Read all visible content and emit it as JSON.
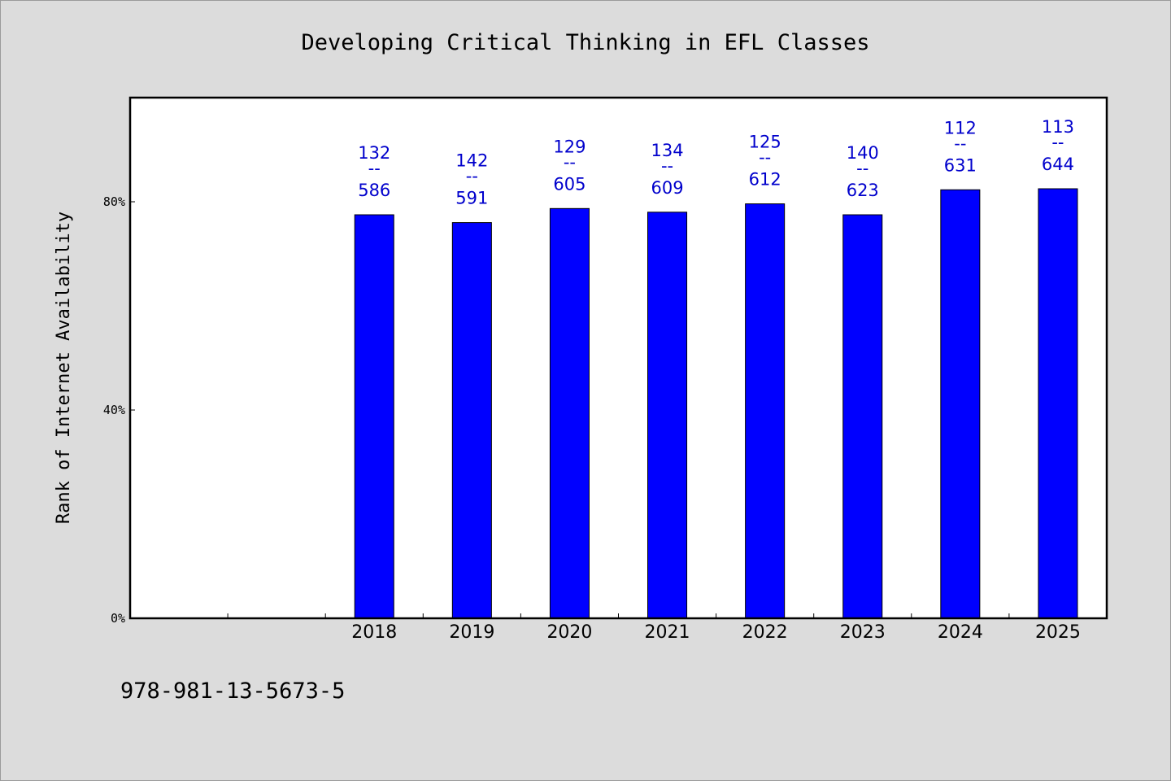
{
  "footer": {
    "isbn": "978-981-13-5673-5"
  },
  "colors": {
    "background": "#dcdcdc",
    "plot": "#ffffff",
    "bar": "#0000ff",
    "label": "#0000cc",
    "axis": "#000000"
  },
  "chart_data": {
    "type": "bar",
    "title": "Developing Critical Thinking in EFL Classes",
    "xlabel": "",
    "ylabel": "Rank of Internet Availability",
    "categories": [
      "",
      "",
      "2018",
      "2019",
      "2020",
      "2021",
      "2022",
      "2023",
      "2024",
      "2025"
    ],
    "series": [
      {
        "values": [
          null,
          null,
          77.5,
          76.0,
          78.7,
          78.0,
          79.6,
          77.5,
          82.3,
          82.5
        ]
      }
    ],
    "data_labels": [
      null,
      null,
      [
        "132",
        "--",
        "586"
      ],
      [
        "142",
        "--",
        "591"
      ],
      [
        "129",
        "--",
        "605"
      ],
      [
        "134",
        "--",
        "609"
      ],
      [
        "125",
        "--",
        "612"
      ],
      [
        "140",
        "--",
        "623"
      ],
      [
        "112",
        "--",
        "631"
      ],
      [
        "113",
        "--",
        "644"
      ]
    ],
    "yticks": [
      0,
      40,
      80
    ],
    "ytick_labels": [
      "0%",
      "40%",
      "80%"
    ],
    "ylim": [
      0,
      100
    ],
    "grid": false,
    "legend": "none"
  }
}
